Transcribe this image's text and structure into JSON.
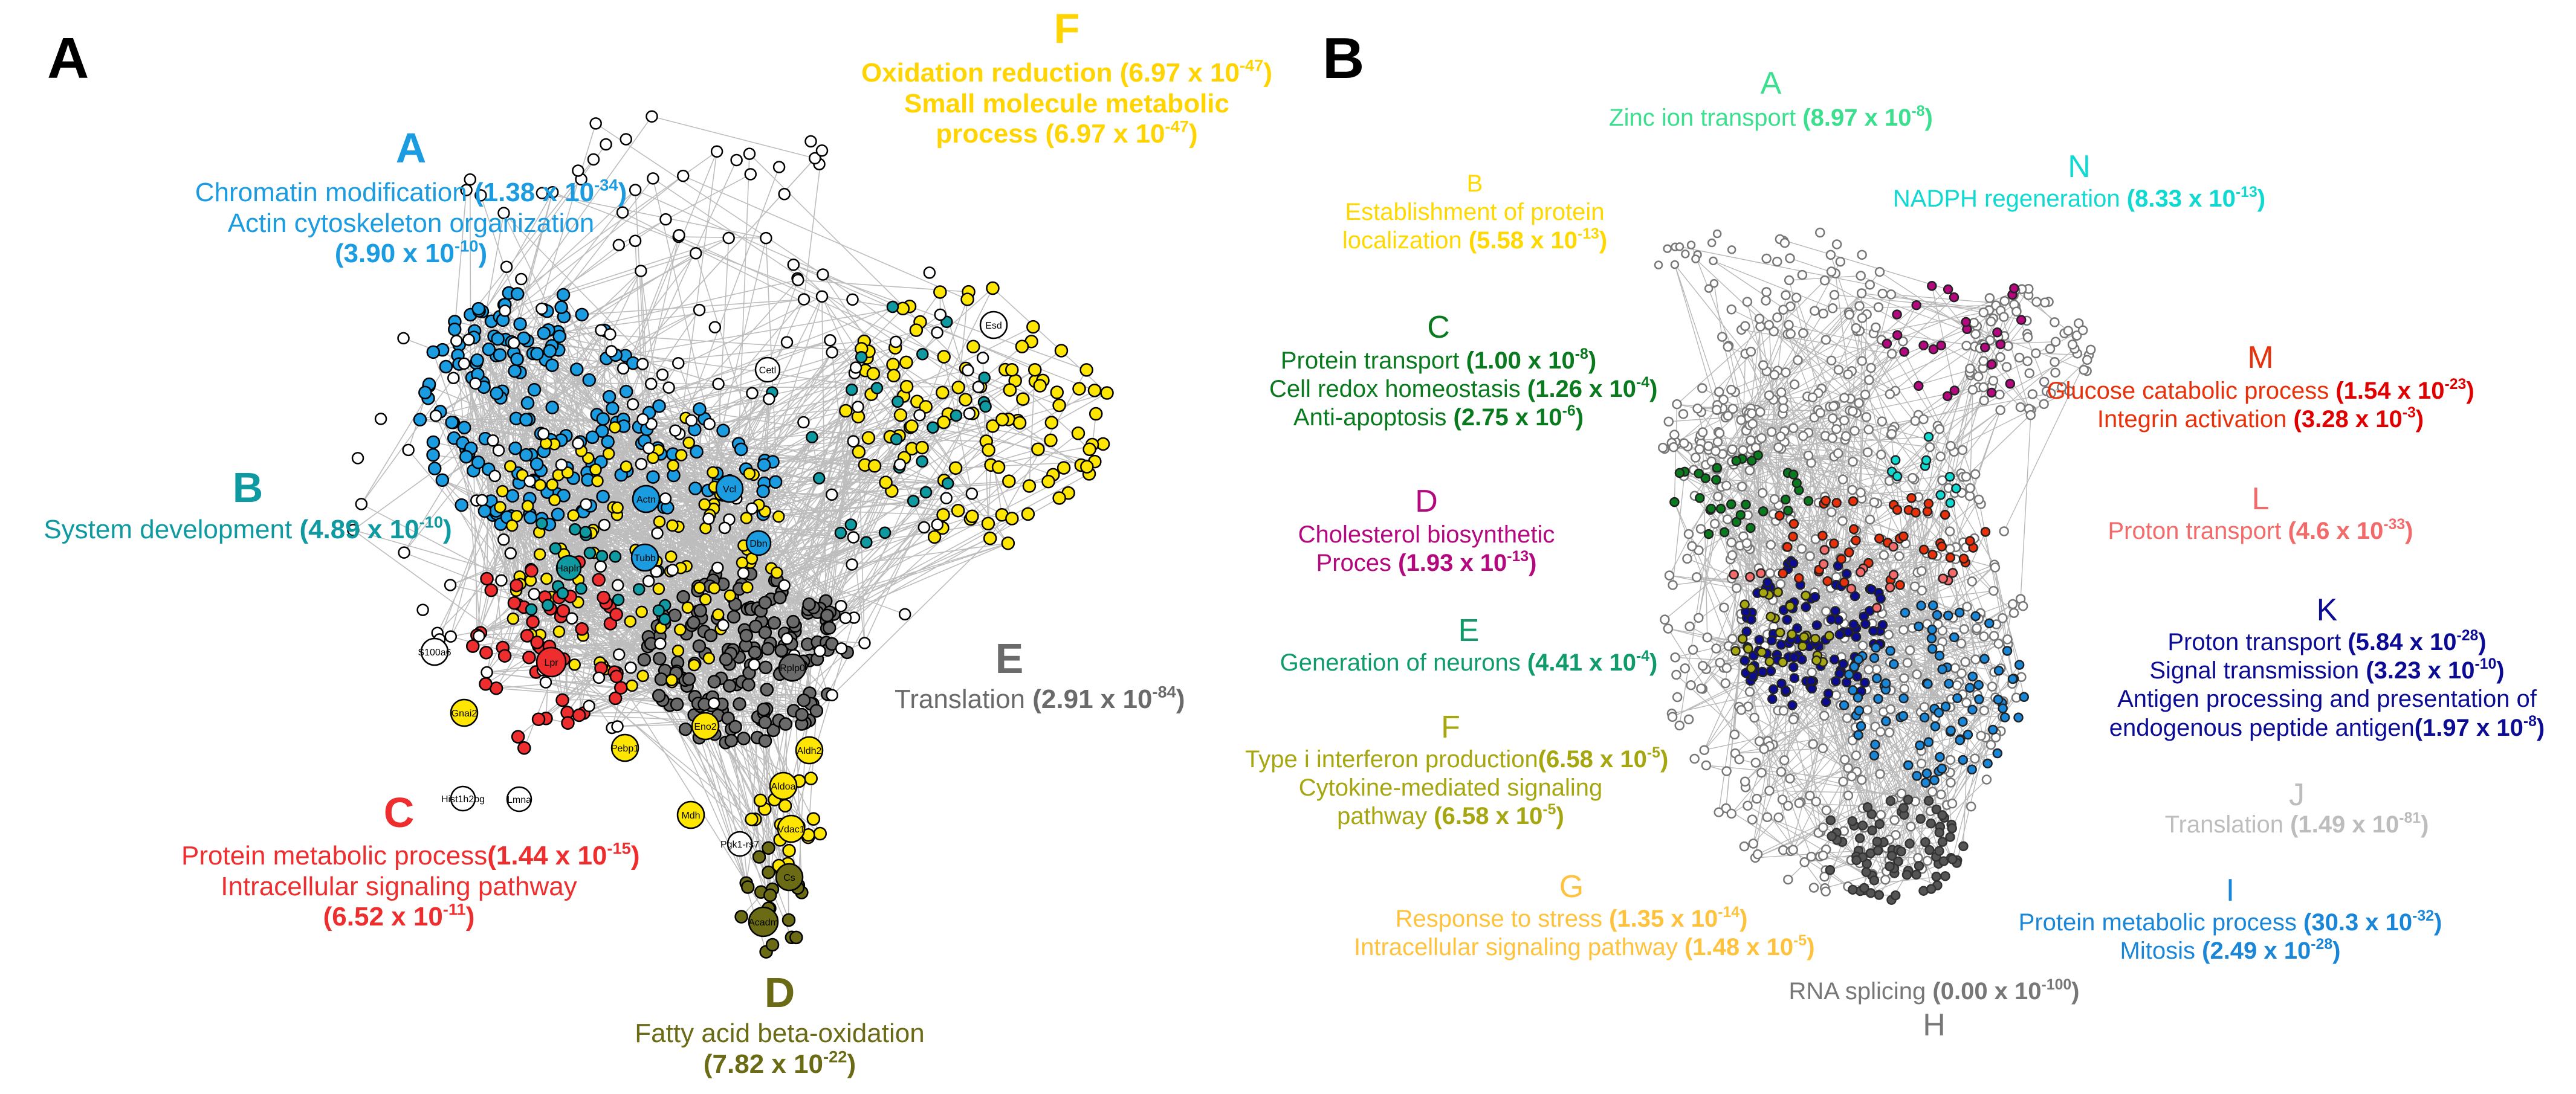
{
  "panels": {
    "a": "A",
    "b": "B"
  },
  "colors": {
    "a_A": "#1b9be0",
    "a_B": "#0e9aa0",
    "a_C": "#ee2e2e",
    "a_D": "#6b6b16",
    "a_E": "#6a6a6a",
    "a_F": "#ffe600",
    "b_A": "#3be08f",
    "b_B": "#ffd800",
    "b_C": "#0a7a1f",
    "b_D": "#b3087e",
    "b_E": "#0f9b6a",
    "b_F": "#a6a610",
    "b_G": "#ffc23d",
    "b_H": "#777777",
    "b_I": "#1a86d8",
    "b_J": "#bdbdbd",
    "b_K": "#0b0b94",
    "b_L": "#f36a6a",
    "b_M": "#e8300a",
    "b_N": "#0fd9d0"
  },
  "panelA": {
    "A": {
      "letter": "A",
      "line1": "Chromatin modification",
      "v1": "(1.38 x 10",
      "e1": "-34",
      "c1": ")",
      "line2": "Actin cytoskeleton organization",
      "v2": "(3.90 x 10",
      "e2": "-10",
      "c2": ")"
    },
    "B": {
      "letter": "B",
      "line1": "System development",
      "v1": "(4.89 x 10",
      "e1": "-10",
      "c1": ")"
    },
    "C": {
      "letter": "C",
      "line1": "Protein metabolic process",
      "v1": "(1.44 x 10",
      "e1": "-15",
      "c1": ")",
      "line2": "Intracellular signaling pathway",
      "v2": "(6.52 x 10",
      "e2": "-11",
      "c2": ")"
    },
    "D": {
      "letter": "D",
      "line1": "Fatty acid beta-oxidation",
      "v1": "(7.82 x 10",
      "e1": "-22",
      "c1": ")"
    },
    "E": {
      "letter": "E",
      "line1": "Translation",
      "v1": "(2.91 x 10",
      "e1": "-84",
      "c1": ")"
    },
    "F": {
      "letter": "F",
      "line1": "Oxidation reduction",
      "v1": "(6.97 x 10",
      "e1": "-47",
      "c1": ")",
      "line2": "Small molecule metabolic",
      "line3": "process",
      "v2": "(6.97 x 10",
      "e2": "-47",
      "c2": ")"
    }
  },
  "panelB": {
    "A": {
      "letter": "A",
      "line1": "Zinc ion transport",
      "v1": "(8.97 x 10",
      "e1": "-8",
      "c1": ")"
    },
    "B": {
      "letter": "B",
      "line1": "Establishment of protein",
      "line2": "localization",
      "v2": "(5.58 x 10",
      "e2": "-13",
      "c2": ")"
    },
    "C": {
      "letter": "C",
      "line1": "Protein transport",
      "v1": "(1.00 x 10",
      "e1": "-8",
      "c1": ")",
      "line2": "Cell redox homeostasis",
      "v2": "(1.26 x 10",
      "e2": "-4",
      "c2": ")",
      "line3": "Anti-apoptosis",
      "v3": "(2.75 x 10",
      "e3": "-6",
      "c3": ")"
    },
    "D": {
      "letter": "D",
      "line1": "Cholesterol biosynthetic",
      "line2": "Proces",
      "v2": "(1.93 x 10",
      "e2": "-13",
      "c2": ")"
    },
    "E": {
      "letter": "E",
      "line1": "Generation of neurons",
      "v1": "(4.41 x 10",
      "e1": "-4",
      "c1": ")"
    },
    "F": {
      "letter": "F",
      "line1": "Type i interferon production",
      "v1": "(6.58 x 10",
      "e1": "-5",
      "c1": ")",
      "line2": "Cytokine-mediated signaling",
      "line3": "pathway",
      "v3": "(6.58 x 10",
      "e3": "-5",
      "c3": ")"
    },
    "G": {
      "letter": "G",
      "line1": "Response to stress",
      "v1": "(1.35 x 10",
      "e1": "-14",
      "c1": ")",
      "line2": "Intracellular signaling pathway",
      "v2": "(1.48 x 10",
      "e2": "-5",
      "c2": ")"
    },
    "H": {
      "letter": "H",
      "line1": "RNA splicing",
      "v1": "(0.00 x 10",
      "e1": "-100",
      "c1": ")"
    },
    "I": {
      "letter": "I",
      "line1": "Protein metabolic process",
      "v1": "(30.3 x 10",
      "e1": "-32",
      "c1": ")",
      "line2": "Mitosis",
      "v2": "(2.49 x 10",
      "e2": "-28",
      "c2": ")"
    },
    "J": {
      "letter": "J",
      "line1": "Translation",
      "v1": "(1.49 x 10",
      "e1": "-81",
      "c1": ")"
    },
    "K": {
      "letter": "K",
      "line1": "Proton transport",
      "v1": "(5.84 x 10",
      "e1": "-28",
      "c1": ")",
      "line2": "Signal transmission",
      "v2": "(3.23 x 10",
      "e2": "-10",
      "c2": ")",
      "line3": "Antigen processing and presentation of",
      "line4": "endogenous peptide antigen",
      "v4": "(1.97 x 10",
      "e4": "-8",
      "c4": ")"
    },
    "L": {
      "letter": "L",
      "line1": "Proton transport",
      "v1": "(4.6 x 10",
      "e1": "-33",
      "c1": ")"
    },
    "M": {
      "letter": "M",
      "line1": "Glucose catabolic process",
      "v1": "(1.54 x 10",
      "e1": "-23",
      "c1": ")",
      "line2": "Integrin activation",
      "v2": "(3.28 x 10",
      "e2": "-3",
      "c2": ")"
    },
    "N": {
      "letter": "N",
      "line1": "NADPH regeneration",
      "v1": "(8.33 x 10",
      "e1": "-13",
      "c1": ")"
    }
  },
  "gene_labels": [
    "Esd",
    "Cetl",
    "Vcl",
    "Dbn",
    "Actn",
    "Tubb",
    "Hapln",
    "Lpr",
    "S100a6",
    "Gnai2",
    "Hist1h2bg",
    "Lmna",
    "Rplp0",
    "Pebp1",
    "Eno2",
    "Aldh2",
    "Aldoa",
    "Mdh",
    "Pgk1-rs7",
    "Vdac1",
    "Cs",
    "Acadm"
  ]
}
